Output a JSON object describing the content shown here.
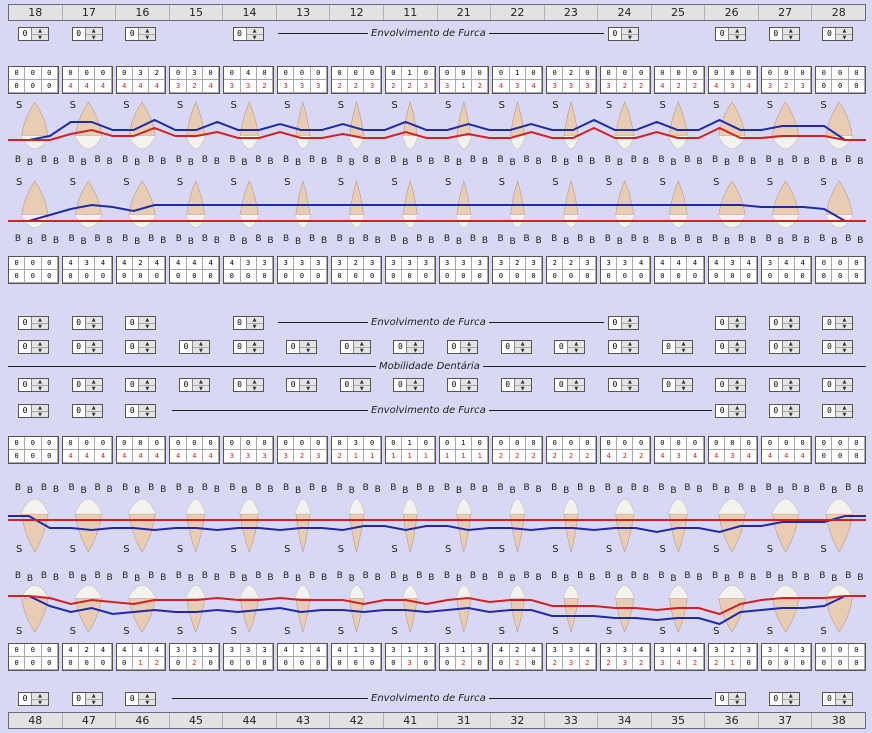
{
  "upper_teeth": [
    "18",
    "17",
    "16",
    "15",
    "14",
    "13",
    "12",
    "11",
    "21",
    "22",
    "23",
    "24",
    "25",
    "26",
    "27",
    "28"
  ],
  "lower_teeth": [
    "48",
    "47",
    "46",
    "45",
    "44",
    "43",
    "42",
    "41",
    "31",
    "32",
    "33",
    "34",
    "35",
    "36",
    "37",
    "38"
  ],
  "spin_value": "0",
  "labels": {
    "furcation": "Envolvimento de Furca",
    "mobility": "Mobilidade Dentária"
  },
  "letters": {
    "s": "S",
    "b": "B"
  },
  "colors": {
    "blue_line": "#1e2aa8",
    "red_line": "#d42020",
    "background": "#d8d8f4"
  },
  "grid_upper_top": [
    [
      "0",
      "0",
      "0",
      "0",
      "0",
      "0"
    ],
    [
      "0",
      "0",
      "0",
      "4",
      "4",
      "4"
    ],
    [
      "0",
      "3",
      "2",
      "4",
      "4",
      "4"
    ],
    [
      "0",
      "3",
      "0",
      "3",
      "2",
      "4"
    ],
    [
      "0",
      "4",
      "0",
      "3",
      "3",
      "2"
    ],
    [
      "0",
      "0",
      "0",
      "3",
      "3",
      "3"
    ],
    [
      "0",
      "0",
      "0",
      "2",
      "2",
      "3"
    ],
    [
      "0",
      "1",
      "0",
      "2",
      "2",
      "3"
    ],
    [
      "0",
      "0",
      "0",
      "3",
      "1",
      "2"
    ],
    [
      "0",
      "1",
      "0",
      "4",
      "3",
      "4"
    ],
    [
      "0",
      "2",
      "0",
      "3",
      "3",
      "3"
    ],
    [
      "0",
      "0",
      "0",
      "3",
      "2",
      "2"
    ],
    [
      "0",
      "0",
      "0",
      "4",
      "2",
      "2"
    ],
    [
      "0",
      "0",
      "0",
      "4",
      "3",
      "4"
    ],
    [
      "0",
      "0",
      "0",
      "3",
      "2",
      "3"
    ],
    [
      "0",
      "0",
      "0",
      "0",
      "0",
      "0"
    ]
  ],
  "grid_upper_bottom": [
    [
      "0",
      "0",
      "0",
      "0",
      "0",
      "0"
    ],
    [
      "4",
      "3",
      "4",
      "0",
      "0",
      "0"
    ],
    [
      "4",
      "2",
      "4",
      "0",
      "0",
      "0"
    ],
    [
      "4",
      "4",
      "4",
      "0",
      "0",
      "0"
    ],
    [
      "4",
      "3",
      "3",
      "0",
      "0",
      "0"
    ],
    [
      "3",
      "3",
      "3",
      "0",
      "0",
      "0"
    ],
    [
      "3",
      "2",
      "3",
      "0",
      "0",
      "0"
    ],
    [
      "3",
      "3",
      "3",
      "0",
      "0",
      "0"
    ],
    [
      "3",
      "3",
      "3",
      "0",
      "0",
      "0"
    ],
    [
      "3",
      "2",
      "3",
      "0",
      "0",
      "0"
    ],
    [
      "2",
      "2",
      "3",
      "0",
      "0",
      "0"
    ],
    [
      "3",
      "3",
      "4",
      "0",
      "0",
      "0"
    ],
    [
      "4",
      "4",
      "4",
      "0",
      "0",
      "0"
    ],
    [
      "4",
      "3",
      "4",
      "0",
      "0",
      "0"
    ],
    [
      "3",
      "4",
      "4",
      "0",
      "0",
      "0"
    ],
    [
      "0",
      "0",
      "0",
      "0",
      "0",
      "0"
    ]
  ],
  "grid_lower_top": [
    [
      "0",
      "0",
      "0",
      "0",
      "0",
      "0"
    ],
    [
      "0",
      "0",
      "0",
      "4",
      "4",
      "4"
    ],
    [
      "0",
      "0",
      "0",
      "4",
      "4",
      "4"
    ],
    [
      "0",
      "0",
      "0",
      "4",
      "4",
      "4"
    ],
    [
      "0",
      "0",
      "0",
      "3",
      "3",
      "3"
    ],
    [
      "0",
      "0",
      "0",
      "3",
      "2",
      "3"
    ],
    [
      "0",
      "3",
      "0",
      "2",
      "1",
      "1"
    ],
    [
      "0",
      "1",
      "0",
      "1",
      "1",
      "1"
    ],
    [
      "0",
      "1",
      "0",
      "1",
      "1",
      "1"
    ],
    [
      "0",
      "0",
      "0",
      "2",
      "2",
      "2"
    ],
    [
      "0",
      "0",
      "0",
      "2",
      "2",
      "2"
    ],
    [
      "0",
      "0",
      "0",
      "4",
      "2",
      "2"
    ],
    [
      "0",
      "0",
      "0",
      "4",
      "3",
      "4"
    ],
    [
      "0",
      "0",
      "0",
      "4",
      "3",
      "4"
    ],
    [
      "0",
      "0",
      "0",
      "4",
      "4",
      "4"
    ],
    [
      "0",
      "0",
      "0",
      "0",
      "0",
      "0"
    ]
  ],
  "grid_lower_bottom": [
    [
      "0",
      "0",
      "0",
      "0",
      "0",
      "0"
    ],
    [
      "4",
      "2",
      "4",
      "0",
      "0",
      "0"
    ],
    [
      "4",
      "4",
      "4",
      "0",
      "1",
      "2"
    ],
    [
      "3",
      "3",
      "3",
      "0",
      "2",
      "0"
    ],
    [
      "3",
      "3",
      "3",
      "0",
      "0",
      "0"
    ],
    [
      "4",
      "2",
      "4",
      "0",
      "0",
      "0"
    ],
    [
      "4",
      "1",
      "3",
      "0",
      "0",
      "0"
    ],
    [
      "3",
      "1",
      "3",
      "0",
      "3",
      "0"
    ],
    [
      "3",
      "1",
      "3",
      "0",
      "2",
      "0"
    ],
    [
      "4",
      "2",
      "4",
      "0",
      "2",
      "0"
    ],
    [
      "3",
      "3",
      "4",
      "2",
      "3",
      "2"
    ],
    [
      "3",
      "3",
      "4",
      "2",
      "3",
      "2"
    ],
    [
      "3",
      "4",
      "4",
      "3",
      "4",
      "2"
    ],
    [
      "3",
      "2",
      "3",
      "2",
      "1",
      "0"
    ],
    [
      "3",
      "4",
      "3",
      "0",
      "0",
      "0"
    ],
    [
      "0",
      "0",
      "0",
      "0",
      "0",
      "0"
    ]
  ]
}
